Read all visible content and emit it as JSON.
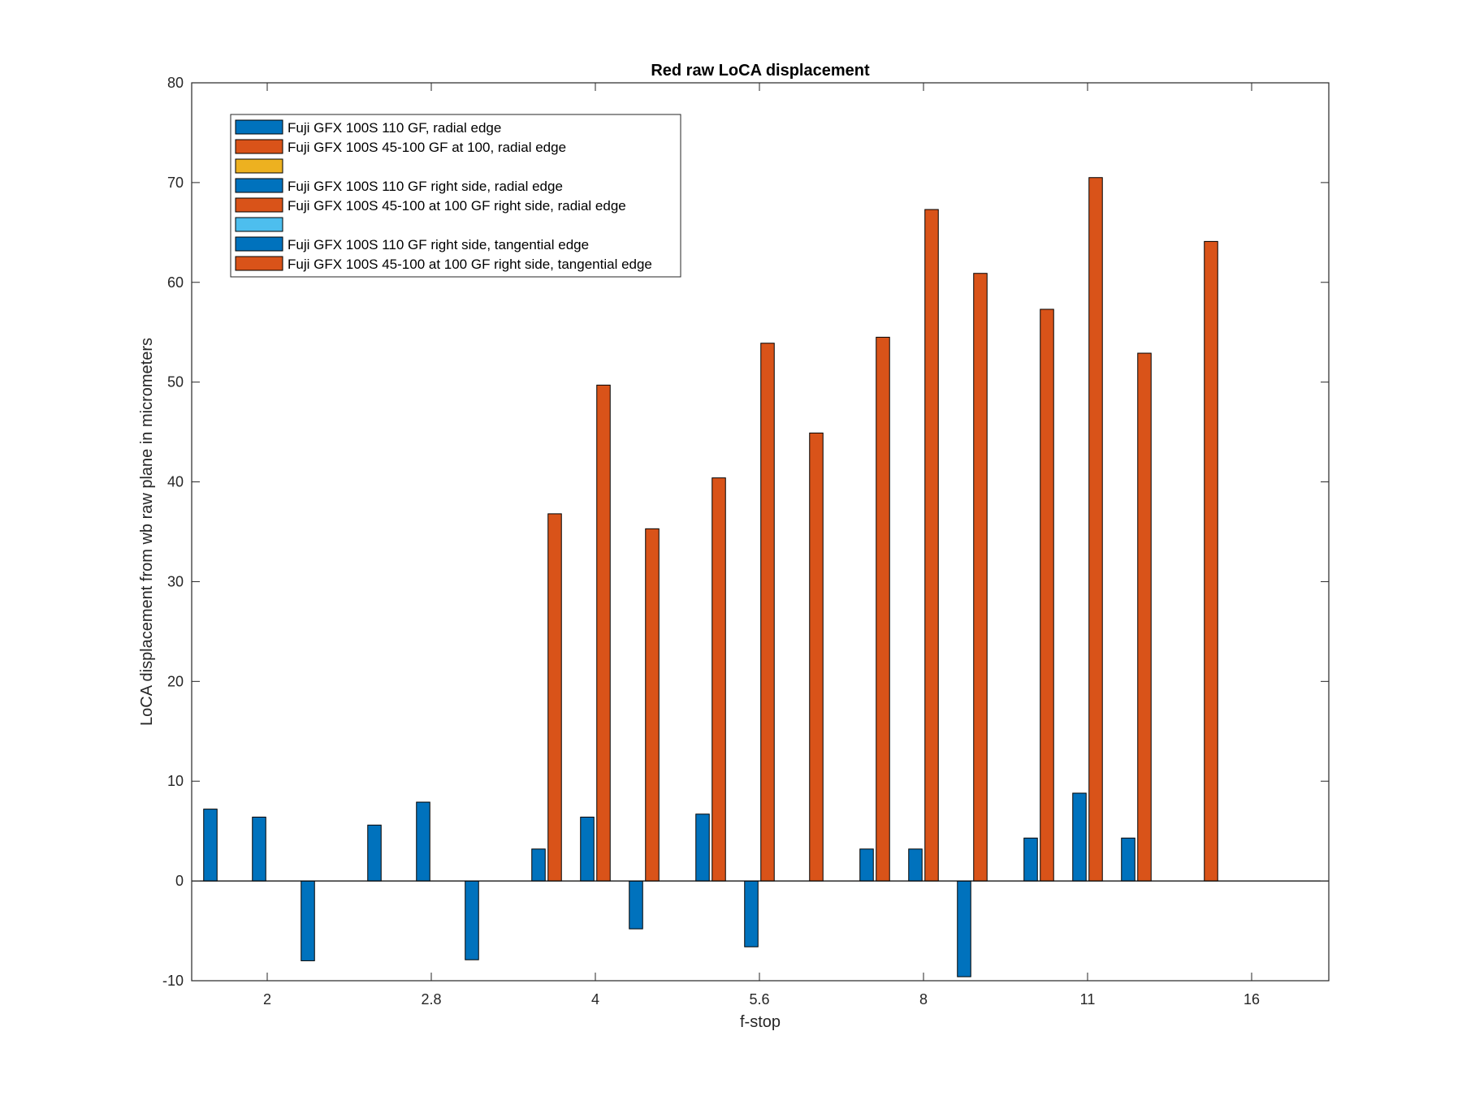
{
  "chart_data": {
    "type": "bar",
    "title": "Red raw  LoCA displacement",
    "xlabel": "f-stop",
    "ylabel": "LoCA displacement from wb raw plane in micrometers",
    "categories": [
      "2",
      "2.8",
      "4",
      "5.6",
      "8",
      "11",
      "16"
    ],
    "ylim": [
      -10,
      80
    ],
    "yticks": [
      -10,
      0,
      10,
      20,
      30,
      40,
      50,
      60,
      70,
      80
    ],
    "grid": false,
    "legend_position": "top-left",
    "colors": [
      "#0072BD",
      "#D95319",
      "#EDB120",
      "#0072BD",
      "#D95319",
      "#4DBEEE",
      "#0072BD",
      "#D95319"
    ],
    "series": [
      {
        "name": "Fuji GFX 100S 110 GF, radial edge",
        "values": [
          7.2,
          5.6,
          3.2,
          6.7,
          3.2,
          4.3,
          0
        ]
      },
      {
        "name": "Fuji GFX 100S 45-100 GF at 100, radial edge",
        "values": [
          0,
          0,
          36.8,
          40.4,
          54.5,
          57.3,
          64.1
        ]
      },
      {
        "name": "",
        "values": [
          0,
          0,
          0,
          0,
          0,
          0,
          0
        ]
      },
      {
        "name": "Fuji GFX 100S 110 GF right side, radial edge",
        "values": [
          6.4,
          7.9,
          6.4,
          -6.6,
          3.2,
          8.8,
          0
        ]
      },
      {
        "name": "Fuji GFX 100S 45-100 at 100 GF right side, radial edge",
        "values": [
          0,
          0,
          49.7,
          53.9,
          67.3,
          70.5,
          0
        ]
      },
      {
        "name": "",
        "values": [
          0,
          0,
          0,
          0,
          0,
          0,
          0
        ]
      },
      {
        "name": "Fuji GFX 100S 110 GF right side, tangential edge",
        "values": [
          -8.0,
          -7.9,
          -4.8,
          0,
          -9.6,
          4.3,
          0
        ]
      },
      {
        "name": "Fuji GFX 100S 45-100 at 100 GF right side, tangential edge",
        "values": [
          0,
          0,
          35.3,
          44.9,
          60.9,
          52.9,
          0
        ]
      }
    ]
  }
}
